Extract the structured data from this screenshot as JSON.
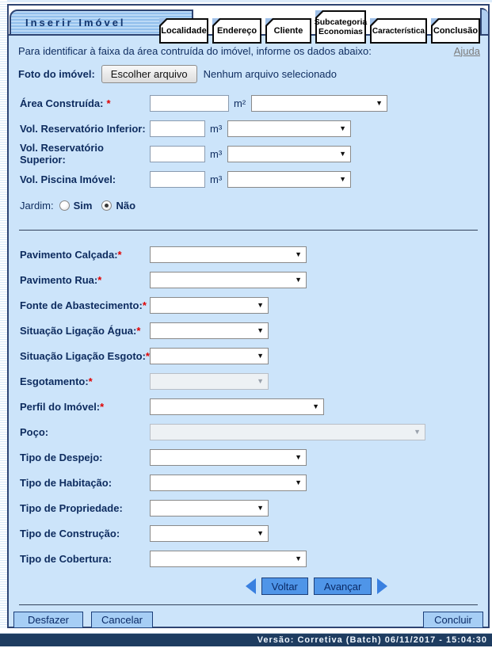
{
  "window": {
    "title": "Inserir Imóvel"
  },
  "tabs": [
    {
      "label": "Localidade"
    },
    {
      "label": "Endereço"
    },
    {
      "label": "Cliente"
    },
    {
      "label": "Subcategoria Economias"
    },
    {
      "label": "Característica",
      "active": true
    },
    {
      "label": "Conclusão"
    }
  ],
  "intro": {
    "text": "Para identificar à faixa da área contruída do imóvel, informe os dados abaixo:",
    "help": "Ajuda"
  },
  "photo": {
    "label": "Foto do imóvel:",
    "button_label": "Escolher arquivo",
    "status": "Nenhum arquivo selecionado"
  },
  "required_marker": "*",
  "icons": {
    "dropdown_arrow": "▼"
  },
  "fields": {
    "area_construida": {
      "label": "Área Construída:",
      "required": true,
      "unit": "m²",
      "value": "",
      "select_value": ""
    },
    "vol_reservatorio_inferior": {
      "label": "Vol. Reservatório Inferior:",
      "unit": "m³",
      "value": "",
      "select_value": ""
    },
    "vol_reservatorio_superior": {
      "label": "Vol. Reservatório Superior:",
      "unit": "m³",
      "value": "",
      "select_value": ""
    },
    "vol_piscina": {
      "label": "Vol. Piscina Imóvel:",
      "unit": "m³",
      "value": "",
      "select_value": ""
    },
    "jardim": {
      "label": "Jardim:",
      "options": [
        "Sim",
        "Não"
      ],
      "selected": "Não"
    },
    "pavimento_calcada": {
      "label": "Pavimento Calçada:",
      "required": true,
      "select_value": ""
    },
    "pavimento_rua": {
      "label": "Pavimento Rua:",
      "required": true,
      "select_value": ""
    },
    "fonte_abastecimento": {
      "label": "Fonte de Abastecimento:",
      "required": true,
      "select_value": ""
    },
    "situacao_ligacao_agua": {
      "label": "Situação Ligação Água:",
      "required": true,
      "select_value": ""
    },
    "situacao_ligacao_esgoto": {
      "label": "Situação Ligação Esgoto:",
      "required": true,
      "select_value": ""
    },
    "esgotamento": {
      "label": "Esgotamento:",
      "required": true,
      "select_value": "",
      "disabled": true
    },
    "perfil_imovel": {
      "label": "Perfil do Imóvel:",
      "required": true,
      "select_value": ""
    },
    "poco": {
      "label": "Poço:",
      "select_value": "",
      "disabled": true
    },
    "tipo_despejo": {
      "label": "Tipo de Despejo:",
      "select_value": ""
    },
    "tipo_habitacao": {
      "label": "Tipo de Habitação:",
      "select_value": ""
    },
    "tipo_propriedade": {
      "label": "Tipo de Propriedade:",
      "select_value": ""
    },
    "tipo_construcao": {
      "label": "Tipo de Construção:",
      "select_value": ""
    },
    "tipo_cobertura": {
      "label": "Tipo de Cobertura:",
      "select_value": ""
    }
  },
  "nav": {
    "voltar": "Voltar",
    "avancar": "Avançar"
  },
  "actions": {
    "desfazer": "Desfazer",
    "cancelar": "Cancelar",
    "concluir": "Concluir"
  },
  "footer": {
    "version": "Versão: Corretiva (Batch) 06/11/2017 - 15:04:30"
  }
}
